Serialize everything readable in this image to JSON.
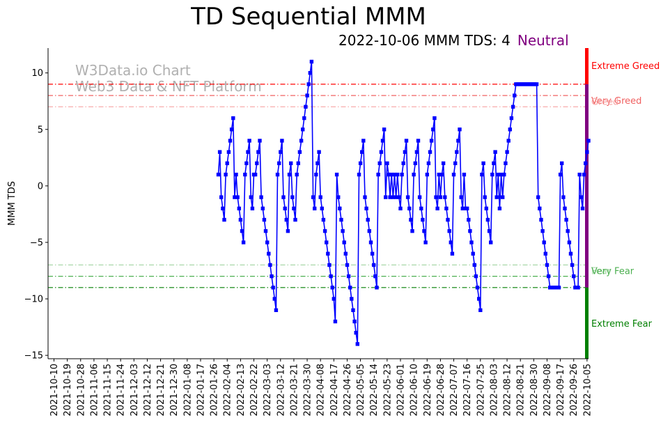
{
  "chart_data": {
    "type": "line",
    "title": "TD Sequential MMM",
    "subtitle": "2022-10-06 MMM TDS: 4",
    "status": "Neutral",
    "ylabel": "MMM TDS",
    "xlabel": "",
    "ylim": [
      -15.3,
      12.2
    ],
    "yticks": [
      10,
      5,
      0,
      -5,
      -10,
      -15
    ],
    "ytick_labels": [
      "10",
      "5",
      "0",
      "−5",
      "−10",
      "−15"
    ],
    "x_start": "2021-10-06",
    "x_end": "2022-10-06",
    "xtick_labels": [
      "2021-10-10",
      "2021-10-19",
      "2021-10-28",
      "2021-11-06",
      "2021-11-15",
      "2021-11-24",
      "2021-12-03",
      "2021-12-12",
      "2021-12-21",
      "2021-12-30",
      "2022-01-08",
      "2022-01-17",
      "2022-01-26",
      "2022-02-04",
      "2022-02-13",
      "2022-02-22",
      "2022-03-03",
      "2022-03-12",
      "2022-03-21",
      "2022-03-30",
      "2022-04-08",
      "2022-04-17",
      "2022-04-26",
      "2022-05-05",
      "2022-05-14",
      "2022-05-23",
      "2022-06-01",
      "2022-06-10",
      "2022-06-19",
      "2022-06-28",
      "2022-07-07",
      "2022-07-16",
      "2022-07-25",
      "2022-08-03",
      "2022-08-12",
      "2022-08-21",
      "2022-08-30",
      "2022-09-08",
      "2022-09-17",
      "2022-09-26",
      "2022-10-05"
    ],
    "series": [
      {
        "name": "MMM TDS",
        "color": "#0000ff",
        "values": [
          1,
          3,
          -1,
          -2,
          -3,
          1,
          2,
          3,
          4,
          5,
          6,
          -1,
          1,
          -1,
          -2,
          -3,
          -4,
          -5,
          1,
          2,
          3,
          4,
          -1,
          -2,
          1,
          1,
          2,
          3,
          4,
          -1,
          -2,
          -3,
          -4,
          -5,
          -6,
          -7,
          -8,
          -9,
          -10,
          -11,
          1,
          2,
          3,
          4,
          -1,
          -2,
          -3,
          -4,
          1,
          2,
          -1,
          -2,
          -3,
          1,
          2,
          3,
          4,
          5,
          6,
          7,
          8,
          9,
          10,
          11,
          -1,
          -2,
          1,
          2,
          3,
          -1,
          -2,
          -3,
          -4,
          -5,
          -6,
          -7,
          -8,
          -9,
          -10,
          -12,
          1,
          -1,
          -2,
          -3,
          -4,
          -5,
          -6,
          -7,
          -8,
          -9,
          -10,
          -11,
          -12,
          -13,
          -14,
          1,
          2,
          3,
          4,
          -1,
          -2,
          -3,
          -4,
          -5,
          -6,
          -7,
          -8,
          -9,
          1,
          2,
          3,
          4,
          5,
          -1,
          2,
          1,
          -1,
          1,
          -1,
          1,
          -1,
          1,
          -1,
          -2,
          1,
          2,
          3,
          4,
          -1,
          -2,
          -3,
          -4,
          1,
          2,
          3,
          4,
          -1,
          -2,
          -3,
          -4,
          -5,
          1,
          2,
          3,
          4,
          5,
          6,
          -1,
          -2,
          1,
          -1,
          1,
          2,
          -1,
          -2,
          -3,
          -4,
          -5,
          -6,
          1,
          2,
          3,
          4,
          5,
          -1,
          -2,
          1,
          -2,
          -2,
          -3,
          -4,
          -5,
          -6,
          -7,
          -8,
          -9,
          -10,
          -11,
          1,
          2,
          -1,
          -2,
          -3,
          -4,
          -5,
          1,
          2,
          3,
          -1,
          1,
          -2,
          1,
          -1,
          1,
          2,
          3,
          4,
          5,
          6,
          7,
          8,
          9,
          9,
          9,
          9,
          9,
          9,
          9,
          9,
          9,
          9,
          9,
          9,
          9,
          9,
          9,
          -1,
          -2,
          -3,
          -4,
          -5,
          -6,
          -7,
          -8,
          -9,
          -9,
          -9,
          -9,
          -9,
          -9,
          -9,
          1,
          2,
          -1,
          -2,
          -3,
          -4,
          -5,
          -6,
          -7,
          -8,
          -9,
          -9,
          -9,
          1,
          -1,
          -2,
          1,
          2,
          3,
          4
        ]
      }
    ],
    "thresholds": [
      {
        "name": "Extreme Greed",
        "value": 9,
        "color": "#ff0000"
      },
      {
        "name": "Very Greed",
        "value": 8,
        "color": "#f06060"
      },
      {
        "name": "Greed",
        "value": 7,
        "color": "#f7a3a3"
      },
      {
        "name": "Fear",
        "value": -7,
        "color": "#a8d8a8"
      },
      {
        "name": "Very Fear",
        "value": -8,
        "color": "#4caf50"
      },
      {
        "name": "Extreme Fear",
        "value": -9,
        "color": "#007f00"
      }
    ],
    "side_bar": [
      {
        "from": 9,
        "to": 12.2,
        "color": "#ff0000"
      },
      {
        "from": -9,
        "to": 9,
        "color": "#800080"
      },
      {
        "from": -15.3,
        "to": -9,
        "color": "#008000"
      }
    ],
    "watermark": [
      "W3Data.io Chart",
      "Web3 Data & NFT Platform"
    ]
  }
}
